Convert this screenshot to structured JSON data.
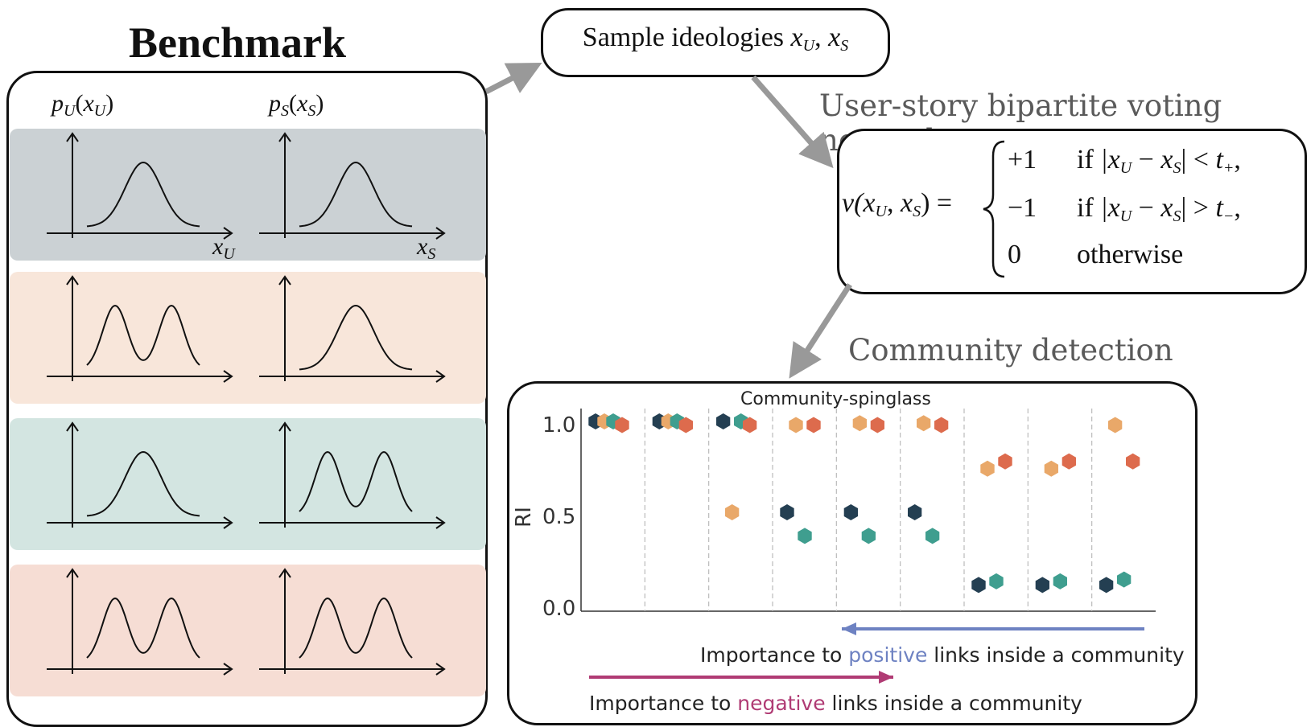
{
  "benchmark": {
    "title": "Benchmark",
    "col_label_user": "p",
    "col_label_user_sub": "U",
    "col_label_user_arg": "x",
    "col_label_story": "p",
    "col_label_story_sub": "S",
    "col_label_story_arg": "x",
    "axis_user": "x",
    "axis_user_sub": "U",
    "axis_story": "x",
    "axis_story_sub": "S",
    "rows": [
      {
        "user_shape": "unimodal",
        "story_shape": "unimodal",
        "color": "#cbd1d4"
      },
      {
        "user_shape": "bimodal",
        "story_shape": "unimodal",
        "color": "#f8e6da"
      },
      {
        "user_shape": "unimodal",
        "story_shape": "bimodal",
        "color": "#d3e5e1"
      },
      {
        "user_shape": "bimodal",
        "story_shape": "bimodal",
        "color": "#f6ddd4"
      }
    ]
  },
  "sample": {
    "text": "Sample ideologies "
  },
  "voting": {
    "title": "User-story bipartite voting network",
    "lhs": "v(x",
    "cases": [
      {
        "value": "+1",
        "cond_word": "if",
        "cond": "|x",
        "op": "<",
        "thr": "t",
        "thr_sub": "+"
      },
      {
        "value": "−1",
        "cond_word": "if",
        "cond": "|x",
        "op": ">",
        "thr": "t",
        "thr_sub": "−"
      },
      {
        "value": "0",
        "cond_word": "otherwise"
      }
    ]
  },
  "community": {
    "title": "Community detection"
  },
  "chart_data": {
    "type": "scatter",
    "title": "Community-spinglass",
    "ylabel": "RI",
    "ylim": [
      0.0,
      1.0
    ],
    "yticks": [
      "0.0",
      "0.5",
      "1.0"
    ],
    "groups": 9,
    "grid": "vertical dashed separators",
    "series": [
      {
        "color": "#243f52",
        "values": [
          1.0,
          1.0,
          1.0,
          0.5,
          0.5,
          0.5,
          0.1,
          0.1,
          0.1
        ]
      },
      {
        "color": "#e9a869",
        "values": [
          1.0,
          1.0,
          0.5,
          0.98,
          0.99,
          0.99,
          0.74,
          0.74,
          0.98
        ]
      },
      {
        "color": "#3f9e8f",
        "values": [
          1.0,
          1.0,
          1.0,
          0.37,
          0.37,
          0.37,
          0.12,
          0.12,
          0.13
        ]
      },
      {
        "color": "#dd6b4d",
        "values": [
          0.98,
          0.98,
          0.98,
          0.98,
          0.98,
          0.98,
          0.78,
          0.78,
          0.78
        ]
      }
    ],
    "positive_arrow": {
      "before": "Importance to ",
      "word": "positive",
      "after": " links inside a community",
      "color": "#6e82c2"
    },
    "negative_arrow": {
      "before": "Importance to ",
      "word": "negative",
      "after": " links inside a community",
      "color": "#b03b74"
    }
  },
  "colors": {
    "arrow_gray": "#999999"
  }
}
